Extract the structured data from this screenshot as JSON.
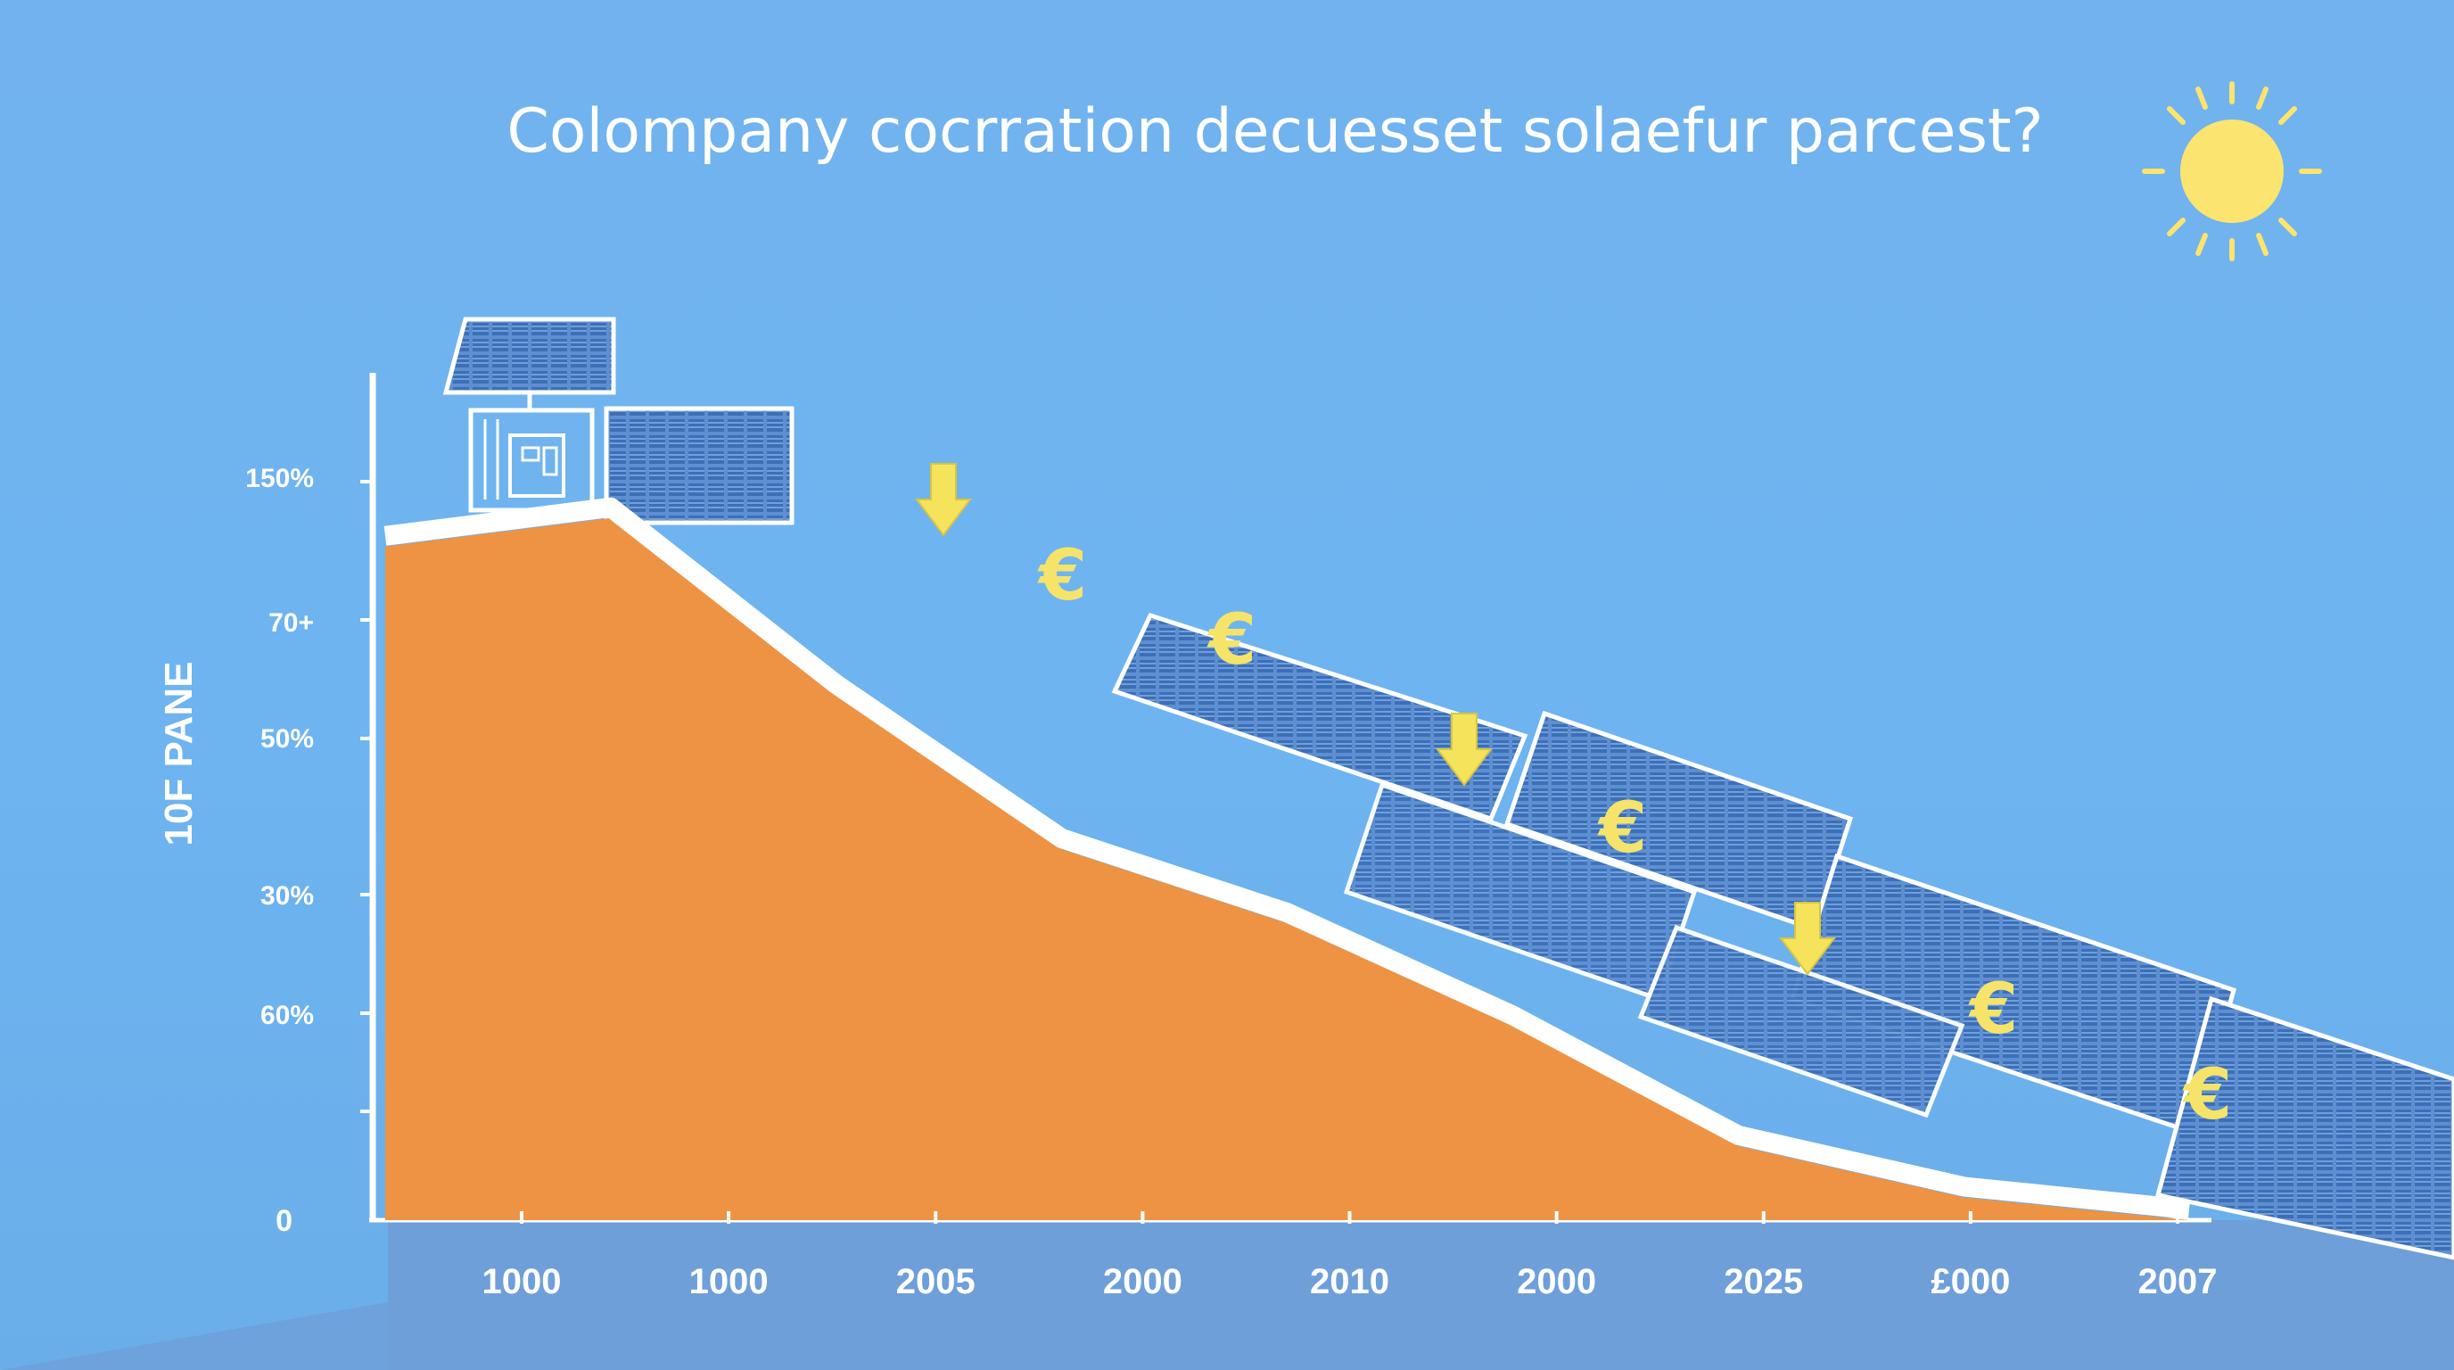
{
  "colors": {
    "sky": "#6db4f0",
    "area_fill": "#ee9344",
    "outline": "#ffffff",
    "panel_fill": "#5b8fd0",
    "panel_cell": "#3f6fb6",
    "sun": "#fbe46f",
    "euro": "#f5e36a",
    "arrow": "#f6e35c",
    "footer_band": "#6f9cd6"
  },
  "icons": [
    "sun-icon",
    "solar-house-icon",
    "solar-panel-icon",
    "down-arrow-icon",
    "euro-icon"
  ],
  "chart_data": {
    "type": "area",
    "title": "Colompany cocrration decuesset solaefur parcest?",
    "ylabel": "10F PANE",
    "xlabel": "",
    "y_tick_labels": [
      "0",
      "60%",
      "30%",
      "50%",
      "70+",
      "150%"
    ],
    "x_tick_labels": [
      "1000",
      "1000",
      "2005",
      "2000",
      "2010",
      "2000",
      "2025",
      "£000",
      "2007"
    ],
    "grid": false,
    "legend": "none",
    "series": [
      {
        "values": [
          118,
          123,
          92,
          65,
          52,
          34,
          13,
          4,
          0
        ]
      }
    ],
    "euro_markers": [
      "€",
      "€",
      "€",
      "€",
      "€"
    ]
  }
}
